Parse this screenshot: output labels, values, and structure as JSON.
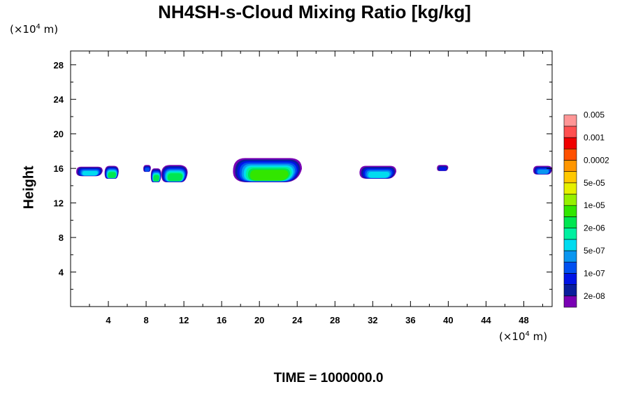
{
  "chart_data": {
    "type": "heatmap",
    "title": "NH4SH-s-Cloud Mixing Ratio [kg/kg]",
    "ylabel": "Height",
    "x_unit": "(×10",
    "y_unit": "(×10",
    "unit_exp": "4",
    "unit_suffix": " m)",
    "footer": "TIME = 1000000.0",
    "xlim": [
      0,
      51
    ],
    "ylim": [
      0,
      29.6
    ],
    "x_ticks": [
      4,
      8,
      12,
      16,
      20,
      24,
      28,
      32,
      36,
      40,
      44,
      48
    ],
    "x_tick_labels": [
      "4",
      "8",
      "12",
      "16",
      "20",
      "24",
      "28",
      "32",
      "36",
      "40",
      "44",
      "48"
    ],
    "y_ticks": [
      4,
      8,
      12,
      16,
      20,
      24,
      28
    ],
    "y_tick_labels": [
      "4",
      "8",
      "12",
      "16",
      "20",
      "24",
      "28"
    ],
    "legend": {
      "placement": "right",
      "colors": [
        "#7a00b4",
        "#0a1e9c",
        "#0014e6",
        "#0050f0",
        "#0a96f0",
        "#00dcf0",
        "#00f0a0",
        "#00e650",
        "#32e600",
        "#96f000",
        "#e6f000",
        "#ffc800",
        "#ff9600",
        "#ff5000",
        "#f00000",
        "#ff5050",
        "#ff9696"
      ],
      "labels": [
        "2e-08",
        "1e-07",
        "5e-07",
        "2e-06",
        "1e-05",
        "5e-05",
        "0.0002",
        "0.001",
        "0.005"
      ]
    },
    "clouds": [
      {
        "x_min": 0.6,
        "x_max": 3.4,
        "y_bottom": 15.1,
        "y_top": 16.2,
        "peak_level": 5
      },
      {
        "x_min": 3.6,
        "x_max": 5.1,
        "y_bottom": 14.8,
        "y_top": 16.3,
        "peak_level": 7
      },
      {
        "x_min": 7.7,
        "x_max": 8.5,
        "y_bottom": 15.6,
        "y_top": 16.4,
        "peak_level": 3
      },
      {
        "x_min": 8.5,
        "x_max": 9.6,
        "y_bottom": 14.4,
        "y_top": 16.0,
        "peak_level": 7
      },
      {
        "x_min": 9.6,
        "x_max": 12.4,
        "y_bottom": 14.4,
        "y_top": 16.4,
        "peak_level": 7
      },
      {
        "x_min": 17.2,
        "x_max": 24.5,
        "y_bottom": 14.4,
        "y_top": 17.2,
        "peak_level": 8
      },
      {
        "x_min": 30.6,
        "x_max": 34.5,
        "y_bottom": 14.8,
        "y_top": 16.3,
        "peak_level": 5
      },
      {
        "x_min": 38.8,
        "x_max": 40.0,
        "y_bottom": 15.7,
        "y_top": 16.4,
        "peak_level": 2
      },
      {
        "x_min": 49.0,
        "x_max": 51.0,
        "y_bottom": 15.3,
        "y_top": 16.3,
        "peak_level": 4
      }
    ]
  }
}
